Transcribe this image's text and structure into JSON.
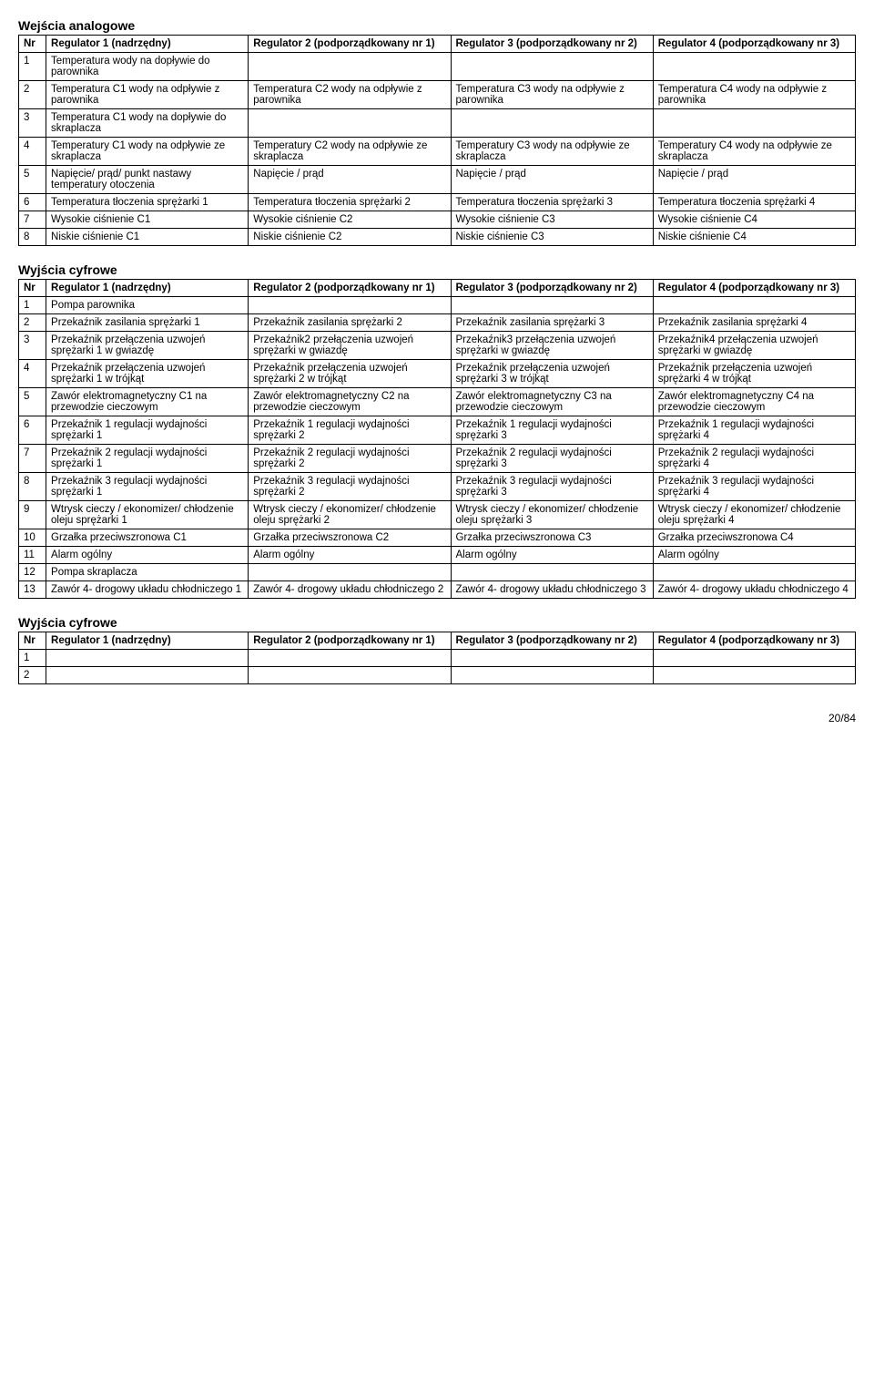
{
  "section1": {
    "title": "Wejścia  analogowe",
    "headers": [
      "Nr",
      "Regulator 1 (nadrzędny)",
      "Regulator 2 (podporządkowany nr 1)",
      "Regulator 3 (podporządkowany nr 2)",
      "Regulator 4 (podporządkowany nr 3)"
    ],
    "rows": [
      [
        "1",
        "Temperatura wody na dopływie do parownika",
        "",
        "",
        ""
      ],
      [
        "2",
        "Temperatura C1 wody na odpływie z parownika",
        "Temperatura C2 wody na odpływie z parownika",
        "Temperatura C3 wody na odpływie z parownika",
        "Temperatura C4 wody na odpływie z parownika"
      ],
      [
        "3",
        "Temperatura C1 wody na dopływie do skraplacza",
        "",
        "",
        ""
      ],
      [
        "4",
        "Temperatury C1 wody na odpływie ze skraplacza",
        "Temperatury C2 wody na odpływie ze skraplacza",
        "Temperatury C3 wody na odpływie ze skraplacza",
        "Temperatury  C4 wody na odpływie ze skraplacza"
      ],
      [
        "5",
        "Napięcie/ prąd/ punkt nastawy temperatury otoczenia",
        "Napięcie / prąd",
        "Napięcie / prąd",
        "Napięcie / prąd"
      ],
      [
        "6",
        "Temperatura tłoczenia sprężarki 1",
        "Temperatura tłoczenia sprężarki 2",
        "Temperatura tłoczenia sprężarki 3",
        "Temperatura tłoczenia sprężarki 4"
      ],
      [
        "7",
        "Wysokie ciśnienie C1",
        "Wysokie ciśnienie C2",
        "Wysokie ciśnienie C3",
        "Wysokie ciśnienie C4"
      ],
      [
        "8",
        "Niskie ciśnienie C1",
        "Niskie ciśnienie C2",
        "Niskie ciśnienie C3",
        "Niskie ciśnienie C4"
      ]
    ]
  },
  "section2": {
    "title": "Wyjścia cyfrowe",
    "headers": [
      "Nr",
      "Regulator 1 (nadrzędny)",
      "Regulator 2 (podporządkowany nr 1)",
      "Regulator 3 (podporządkowany nr 2)",
      "Regulator 4 (podporządkowany nr 3)"
    ],
    "rows": [
      [
        "1",
        "Pompa parownika",
        "",
        "",
        ""
      ],
      [
        "2",
        "Przekaźnik zasilania sprężarki 1",
        "Przekaźnik zasilania sprężarki 2",
        "Przekaźnik zasilania sprężarki 3",
        "Przekaźnik zasilania sprężarki 4"
      ],
      [
        "3",
        "Przekaźnik przełączenia uzwojeń sprężarki  1 w gwiazdę",
        "Przekaźnik2 przełączenia uzwojeń sprężarki w gwiazdę",
        "Przekaźnik3 przełączenia uzwojeń sprężarki w gwiazdę",
        "Przekaźnik4 przełączenia uzwojeń sprężarki w gwiazdę"
      ],
      [
        "4",
        "Przekaźnik przełączenia uzwojeń sprężarki 1 w trójkąt",
        "Przekaźnik przełączenia uzwojeń sprężarki  2 w trójkąt",
        "Przekaźnik przełączenia uzwojeń sprężarki 3  w trójkąt",
        "Przekaźnik przełączenia uzwojeń sprężarki  4 w trójkąt"
      ],
      [
        "5",
        "Zawór elektromagnetyczny C1 na przewodzie cieczowym",
        "Zawór elektromagnetyczny C2 na przewodzie cieczowym",
        "Zawór elektromagnetyczny C3 na przewodzie cieczowym",
        "Zawór elektromagnetyczny C4 na przewodzie cieczowym"
      ],
      [
        "6",
        "Przekaźnik 1 regulacji wydajności sprężarki 1",
        "Przekaźnik 1 regulacji wydajności sprężarki 2",
        "Przekaźnik 1 regulacji wydajności sprężarki 3",
        "Przekaźnik 1 regulacji wydajności sprężarki 4"
      ],
      [
        "7",
        "Przekaźnik 2 regulacji wydajności sprężarki 1",
        "Przekaźnik 2 regulacji wydajności sprężarki 2",
        "Przekaźnik 2 regulacji wydajności sprężarki 3",
        "Przekaźnik 2 regulacji wydajności sprężarki 4"
      ],
      [
        "8",
        "Przekaźnik 3 regulacji wydajności sprężarki 1",
        "Przekaźnik 3 regulacji wydajności sprężarki 2",
        "Przekaźnik 3 regulacji wydajności sprężarki 3",
        "Przekaźnik 3 regulacji wydajności sprężarki 4"
      ],
      [
        "9",
        "Wtrysk cieczy / ekonomizer/ chłodzenie oleju sprężarki 1",
        "Wtrysk cieczy / ekonomizer/ chłodzenie oleju sprężarki 2",
        "Wtrysk cieczy / ekonomizer/ chłodzenie oleju sprężarki 3",
        "Wtrysk cieczy / ekonomizer/ chłodzenie oleju sprężarki 4"
      ],
      [
        "10",
        "Grzałka przeciwszronowa C1",
        "Grzałka przeciwszronowa C2",
        "Grzałka przeciwszronowa C3",
        "Grzałka przeciwszronowa C4"
      ],
      [
        "11",
        "Alarm ogólny",
        "Alarm ogólny",
        "Alarm ogólny",
        "Alarm ogólny"
      ],
      [
        "12",
        "Pompa skraplacza",
        "",
        "",
        ""
      ],
      [
        "13",
        "Zawór 4- drogowy układu chłodniczego 1",
        "Zawór 4- drogowy układu chłodniczego 2",
        "Zawór 4- drogowy układu chłodniczego 3",
        "Zawór 4- drogowy układu chłodniczego 4"
      ]
    ]
  },
  "section3": {
    "title": "Wyjścia cyfrowe",
    "headers": [
      "Nr",
      "Regulator 1 (nadrzędny)",
      "Regulator 2 (podporządkowany nr 1)",
      "Regulator 3 (podporządkowany nr 2)",
      "Regulator 4 (podporządkowany nr 3)"
    ],
    "rows": [
      [
        "1",
        "",
        "",
        "",
        ""
      ],
      [
        "2",
        "",
        "",
        "",
        ""
      ]
    ]
  },
  "pageNumber": "20/84"
}
